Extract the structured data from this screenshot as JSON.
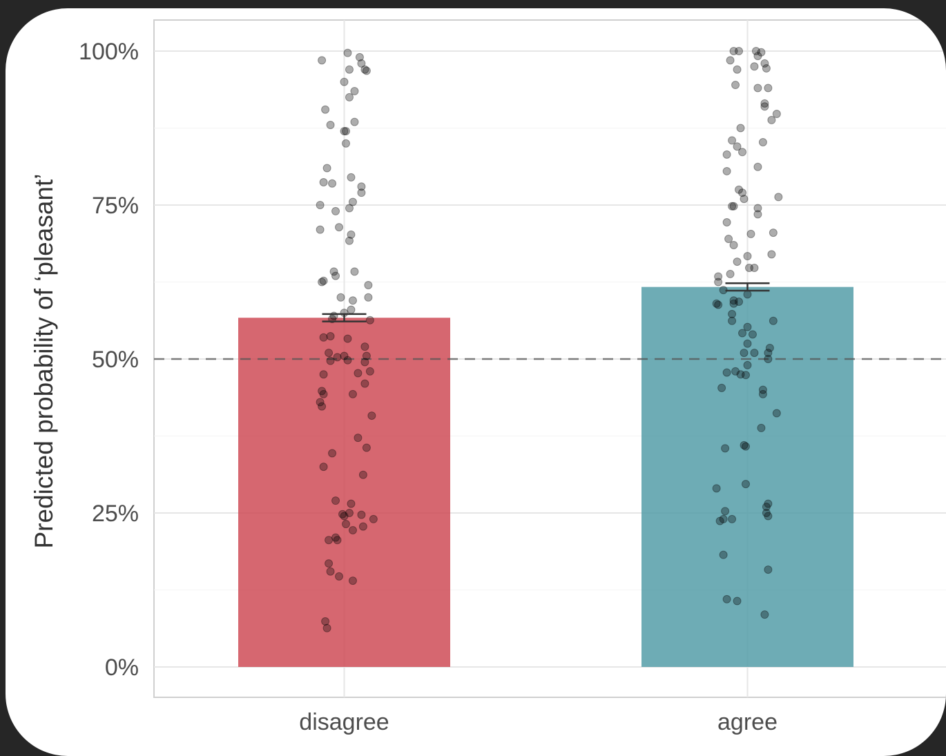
{
  "chart_data": {
    "type": "bar",
    "title": "",
    "xlabel": "",
    "ylabel": "Predicted probability of ‘pleasant’",
    "categories": [
      "disagree",
      "agree"
    ],
    "values": [
      0.567,
      0.617
    ],
    "error_bars": [
      [
        0.561,
        0.573
      ],
      [
        0.611,
        0.623
      ]
    ],
    "reference_line": 0.5,
    "ylim": [
      -0.05,
      1.05
    ],
    "yticks": [
      0,
      0.25,
      0.5,
      0.75,
      1.0
    ],
    "ytick_labels": [
      "0%",
      "25%",
      "50%",
      "75%",
      "100%"
    ],
    "grid": true,
    "colors": {
      "disagree": "#cd4651",
      "agree": "#4e9aa5"
    },
    "points": {
      "disagree": [
        [
          -0.13,
          0.985
        ],
        [
          0.02,
          0.997
        ],
        [
          0.09,
          0.99
        ],
        [
          0.1,
          0.98
        ],
        [
          0.12,
          0.97
        ],
        [
          0.13,
          0.968
        ],
        [
          0.03,
          0.97
        ],
        [
          0.0,
          0.95
        ],
        [
          0.06,
          0.935
        ],
        [
          0.03,
          0.925
        ],
        [
          -0.11,
          0.905
        ],
        [
          -0.08,
          0.88
        ],
        [
          0.06,
          0.885
        ],
        [
          0.0,
          0.87
        ],
        [
          0.01,
          0.87
        ],
        [
          0.01,
          0.85
        ],
        [
          -0.1,
          0.81
        ],
        [
          -0.12,
          0.787
        ],
        [
          -0.07,
          0.785
        ],
        [
          0.04,
          0.795
        ],
        [
          0.1,
          0.78
        ],
        [
          0.1,
          0.77
        ],
        [
          0.05,
          0.755
        ],
        [
          0.03,
          0.745
        ],
        [
          -0.14,
          0.75
        ],
        [
          -0.05,
          0.74
        ],
        [
          -0.14,
          0.71
        ],
        [
          -0.03,
          0.714
        ],
        [
          0.04,
          0.702
        ],
        [
          0.03,
          0.692
        ],
        [
          -0.06,
          0.642
        ],
        [
          -0.05,
          0.635
        ],
        [
          -0.12,
          0.627
        ],
        [
          -0.13,
          0.625
        ],
        [
          0.06,
          0.642
        ],
        [
          0.14,
          0.62
        ],
        [
          0.14,
          0.6
        ],
        [
          -0.02,
          0.6
        ],
        [
          0.05,
          0.595
        ],
        [
          0.04,
          0.58
        ],
        [
          0.0,
          0.575
        ],
        [
          -0.06,
          0.57
        ],
        [
          -0.07,
          0.565
        ],
        [
          0.15,
          0.563
        ],
        [
          -0.12,
          0.535
        ],
        [
          -0.08,
          0.537
        ],
        [
          0.02,
          0.533
        ],
        [
          0.12,
          0.52
        ],
        [
          0.13,
          0.505
        ],
        [
          0.12,
          0.495
        ],
        [
          0.15,
          0.48
        ],
        [
          0.08,
          0.477
        ],
        [
          -0.09,
          0.51
        ],
        [
          -0.04,
          0.503
        ],
        [
          0.0,
          0.505
        ],
        [
          0.02,
          0.498
        ],
        [
          -0.08,
          0.497
        ],
        [
          -0.12,
          0.475
        ],
        [
          0.12,
          0.46
        ],
        [
          0.05,
          0.443
        ],
        [
          -0.13,
          0.448
        ],
        [
          -0.12,
          0.443
        ],
        [
          -0.14,
          0.43
        ],
        [
          -0.13,
          0.423
        ],
        [
          0.16,
          0.408
        ],
        [
          0.08,
          0.372
        ],
        [
          0.13,
          0.356
        ],
        [
          -0.07,
          0.347
        ],
        [
          -0.12,
          0.325
        ],
        [
          0.11,
          0.312
        ],
        [
          -0.05,
          0.27
        ],
        [
          0.04,
          0.265
        ],
        [
          0.03,
          0.25
        ],
        [
          0.0,
          0.245
        ],
        [
          -0.01,
          0.248
        ],
        [
          0.1,
          0.247
        ],
        [
          0.17,
          0.24
        ],
        [
          0.01,
          0.232
        ],
        [
          0.05,
          0.222
        ],
        [
          0.11,
          0.228
        ],
        [
          -0.05,
          0.21
        ],
        [
          -0.04,
          0.206
        ],
        [
          -0.09,
          0.206
        ],
        [
          -0.09,
          0.168
        ],
        [
          -0.08,
          0.155
        ],
        [
          -0.03,
          0.147
        ],
        [
          0.05,
          0.14
        ],
        [
          -0.11,
          0.074
        ],
        [
          -0.1,
          0.063
        ]
      ],
      "agree": [
        [
          -0.08,
          1.0
        ],
        [
          -0.05,
          1.0
        ],
        [
          0.05,
          1.0
        ],
        [
          0.08,
          0.998
        ],
        [
          0.06,
          0.992
        ],
        [
          -0.1,
          0.985
        ],
        [
          0.1,
          0.98
        ],
        [
          0.11,
          0.972
        ],
        [
          0.04,
          0.975
        ],
        [
          -0.06,
          0.97
        ],
        [
          -0.07,
          0.945
        ],
        [
          0.06,
          0.94
        ],
        [
          0.12,
          0.94
        ],
        [
          0.1,
          0.915
        ],
        [
          0.1,
          0.91
        ],
        [
          0.17,
          0.898
        ],
        [
          0.14,
          0.888
        ],
        [
          -0.04,
          0.875
        ],
        [
          -0.09,
          0.855
        ],
        [
          0.09,
          0.852
        ],
        [
          -0.06,
          0.845
        ],
        [
          -0.12,
          0.832
        ],
        [
          -0.03,
          0.836
        ],
        [
          0.06,
          0.812
        ],
        [
          -0.12,
          0.805
        ],
        [
          -0.05,
          0.775
        ],
        [
          -0.03,
          0.77
        ],
        [
          -0.02,
          0.76
        ],
        [
          0.18,
          0.763
        ],
        [
          -0.09,
          0.748
        ],
        [
          -0.08,
          0.748
        ],
        [
          0.06,
          0.745
        ],
        [
          0.06,
          0.735
        ],
        [
          -0.12,
          0.722
        ],
        [
          0.02,
          0.703
        ],
        [
          0.15,
          0.705
        ],
        [
          -0.11,
          0.695
        ],
        [
          -0.08,
          0.685
        ],
        [
          0.14,
          0.67
        ],
        [
          0.0,
          0.667
        ],
        [
          -0.06,
          0.658
        ],
        [
          0.01,
          0.648
        ],
        [
          0.04,
          0.648
        ],
        [
          -0.1,
          0.638
        ],
        [
          -0.17,
          0.634
        ],
        [
          -0.17,
          0.625
        ],
        [
          -0.14,
          0.612
        ],
        [
          0.0,
          0.605
        ],
        [
          -0.05,
          0.593
        ],
        [
          -0.08,
          0.59
        ],
        [
          -0.08,
          0.595
        ],
        [
          -0.18,
          0.59
        ],
        [
          -0.17,
          0.588
        ],
        [
          -0.09,
          0.573
        ],
        [
          -0.09,
          0.562
        ],
        [
          0.15,
          0.562
        ],
        [
          0.0,
          0.552
        ],
        [
          -0.03,
          0.542
        ],
        [
          0.03,
          0.54
        ],
        [
          0.0,
          0.525
        ],
        [
          0.13,
          0.518
        ],
        [
          0.12,
          0.51
        ],
        [
          -0.02,
          0.51
        ],
        [
          0.04,
          0.51
        ],
        [
          0.0,
          0.49
        ],
        [
          0.12,
          0.5
        ],
        [
          -0.07,
          0.48
        ],
        [
          -0.04,
          0.475
        ],
        [
          -0.12,
          0.478
        ],
        [
          -0.01,
          0.474
        ],
        [
          -0.15,
          0.453
        ],
        [
          0.09,
          0.45
        ],
        [
          0.09,
          0.443
        ],
        [
          0.17,
          0.412
        ],
        [
          0.08,
          0.388
        ],
        [
          -0.02,
          0.36
        ],
        [
          -0.01,
          0.358
        ],
        [
          -0.13,
          0.355
        ],
        [
          -0.01,
          0.297
        ],
        [
          -0.18,
          0.29
        ],
        [
          0.12,
          0.265
        ],
        [
          0.11,
          0.26
        ],
        [
          0.11,
          0.25
        ],
        [
          0.12,
          0.245
        ],
        [
          -0.13,
          0.253
        ],
        [
          -0.09,
          0.24
        ],
        [
          -0.16,
          0.237
        ],
        [
          -0.14,
          0.24
        ],
        [
          -0.14,
          0.182
        ],
        [
          -0.12,
          0.11
        ],
        [
          -0.06,
          0.107
        ],
        [
          0.12,
          0.158
        ],
        [
          0.1,
          0.085
        ]
      ]
    }
  }
}
